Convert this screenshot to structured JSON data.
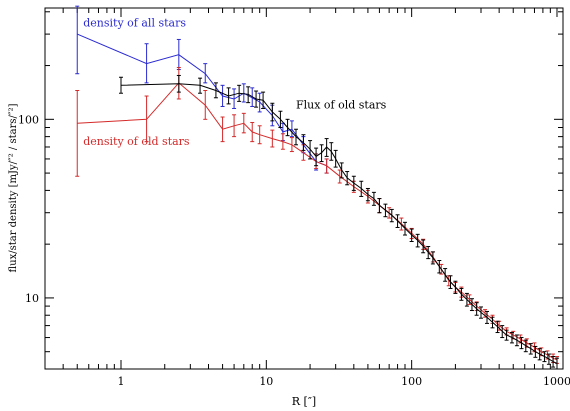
{
  "chart_data": {
    "type": "line",
    "title": "",
    "xlabel": "R [″]",
    "ylabel": "flux/star density [mJy/″² / stars/″²]",
    "xscale": "log",
    "yscale": "log",
    "xlim": [
      0.3,
      1100
    ],
    "ylim": [
      4,
      420
    ],
    "xticks": [
      {
        "v": 1,
        "label": "1"
      },
      {
        "v": 10,
        "label": "10"
      },
      {
        "v": 100,
        "label": "100"
      },
      {
        "v": 1000,
        "label": "1000"
      }
    ],
    "yticks": [
      {
        "v": 10,
        "label": "10"
      },
      {
        "v": 100,
        "label": "100"
      }
    ],
    "series": [
      {
        "name": "density of all stars",
        "color": "#2a2ad2",
        "label": {
          "text": "density of all stars",
          "x": 0.55,
          "y": 330
        },
        "points": [
          [
            0.5,
            300,
            180,
            430
          ],
          [
            1.5,
            205,
            160,
            265
          ],
          [
            2.5,
            230,
            190,
            280
          ],
          [
            3.8,
            180,
            160,
            205
          ],
          [
            5,
            135,
            118,
            155
          ],
          [
            6,
            130,
            115,
            148
          ],
          [
            7,
            140,
            125,
            158
          ],
          [
            8,
            132,
            118,
            150
          ],
          [
            9,
            125,
            110,
            140
          ],
          [
            11,
            105,
            92,
            120
          ],
          [
            13,
            85,
            76,
            95
          ],
          [
            15,
            88,
            80,
            98
          ],
          [
            18,
            72,
            65,
            80
          ],
          [
            22,
            58,
            52,
            64
          ],
          [
            26,
            55,
            50,
            60
          ]
        ]
      },
      {
        "name": "density of old stars",
        "color": "#d42a2a",
        "label": {
          "text": "density of old stars",
          "x": 0.55,
          "y": 72
        },
        "points": [
          [
            0.5,
            95,
            48,
            145
          ],
          [
            1.5,
            100,
            75,
            135
          ],
          [
            2.5,
            160,
            130,
            195
          ],
          [
            3.8,
            120,
            100,
            145
          ],
          [
            5,
            88,
            75,
            103
          ],
          [
            6,
            92,
            80,
            106
          ],
          [
            7,
            95,
            84,
            108
          ],
          [
            8,
            85,
            75,
            96
          ],
          [
            9,
            82,
            73,
            92
          ],
          [
            11,
            78,
            70,
            87
          ],
          [
            13,
            75,
            68,
            83
          ],
          [
            15,
            72,
            66,
            79
          ],
          [
            18,
            65,
            59,
            72
          ],
          [
            22,
            58,
            53,
            64
          ],
          [
            26,
            55,
            50,
            60
          ],
          [
            32,
            48,
            44,
            52
          ],
          [
            40,
            42,
            39,
            45
          ],
          [
            50,
            37,
            34,
            40
          ],
          [
            60,
            33,
            30,
            36
          ],
          [
            70,
            30,
            28,
            32
          ],
          [
            85,
            26,
            24,
            28
          ],
          [
            100,
            23,
            21.5,
            24.5
          ],
          [
            120,
            20,
            18.7,
            21.3
          ],
          [
            140,
            17,
            15.9,
            18.1
          ],
          [
            160,
            14.5,
            13.6,
            15.4
          ],
          [
            180,
            12.5,
            11.7,
            13.3
          ],
          [
            200,
            11.5,
            10.8,
            12.2
          ],
          [
            220,
            10.8,
            10.1,
            11.5
          ],
          [
            250,
            9.8,
            9.2,
            10.4
          ],
          [
            280,
            9.0,
            8.5,
            9.5
          ],
          [
            320,
            8.2,
            7.8,
            8.6
          ],
          [
            360,
            7.6,
            7.2,
            8.0
          ],
          [
            400,
            7.0,
            6.6,
            7.4
          ],
          [
            450,
            6.5,
            6.2,
            6.8
          ],
          [
            500,
            6.2,
            5.9,
            6.5
          ],
          [
            560,
            5.9,
            5.6,
            6.2
          ],
          [
            620,
            5.6,
            5.3,
            5.9
          ],
          [
            700,
            5.3,
            5.0,
            5.6
          ],
          [
            780,
            5.0,
            4.75,
            5.25
          ],
          [
            860,
            4.8,
            4.55,
            5.05
          ],
          [
            940,
            4.6,
            4.35,
            4.85
          ],
          [
            1000,
            4.5,
            4.3,
            4.7
          ]
        ]
      },
      {
        "name": "Flux of old stars",
        "color": "#000000",
        "label": {
          "text": "Flux of old stars",
          "x": 16,
          "y": 115
        },
        "points": [
          [
            1,
            155,
            140,
            172
          ],
          [
            2.5,
            158,
            142,
            176
          ],
          [
            3.5,
            155,
            140,
            170
          ],
          [
            4.5,
            145,
            132,
            160
          ],
          [
            5.5,
            135,
            122,
            150
          ],
          [
            6.5,
            140,
            126,
            155
          ],
          [
            7.5,
            138,
            124,
            152
          ],
          [
            8.5,
            130,
            117,
            144
          ],
          [
            9.5,
            128,
            115,
            142
          ],
          [
            11,
            110,
            98,
            123
          ],
          [
            12.5,
            100,
            90,
            111
          ],
          [
            14,
            90,
            81,
            100
          ],
          [
            16,
            80,
            72,
            88
          ],
          [
            18,
            74,
            67,
            82
          ],
          [
            20,
            68,
            60,
            76
          ],
          [
            22,
            62,
            55,
            69
          ],
          [
            24,
            65,
            58,
            72
          ],
          [
            26,
            70,
            62,
            78
          ],
          [
            28,
            66,
            59,
            74
          ],
          [
            30,
            60,
            54,
            67
          ],
          [
            33,
            52,
            47,
            57
          ],
          [
            36,
            47,
            43,
            51
          ],
          [
            40,
            44,
            40,
            48
          ],
          [
            45,
            41,
            37,
            45
          ],
          [
            50,
            38,
            35,
            41
          ],
          [
            55,
            36,
            33,
            39
          ],
          [
            60,
            33,
            30,
            36
          ],
          [
            66,
            31,
            28.5,
            33.5
          ],
          [
            73,
            29,
            26.7,
            31.3
          ],
          [
            80,
            27,
            24.8,
            29.2
          ],
          [
            90,
            24.5,
            22.5,
            26.5
          ],
          [
            100,
            22.5,
            20.7,
            24.3
          ],
          [
            110,
            21,
            19.3,
            22.7
          ],
          [
            120,
            19.5,
            17.9,
            21.1
          ],
          [
            130,
            18,
            16.6,
            19.4
          ],
          [
            140,
            16.8,
            15.5,
            18.1
          ],
          [
            155,
            15,
            13.8,
            16.2
          ],
          [
            170,
            13.5,
            12.4,
            14.6
          ],
          [
            185,
            12.3,
            11.3,
            13.3
          ],
          [
            200,
            11.5,
            10.6,
            12.4
          ],
          [
            220,
            10.5,
            9.7,
            11.3
          ],
          [
            240,
            9.8,
            9.0,
            10.6
          ],
          [
            260,
            9.2,
            8.5,
            9.9
          ],
          [
            280,
            8.7,
            8.0,
            9.4
          ],
          [
            300,
            8.3,
            7.7,
            8.9
          ],
          [
            330,
            7.8,
            7.2,
            8.4
          ],
          [
            360,
            7.3,
            6.8,
            7.8
          ],
          [
            390,
            6.9,
            6.4,
            7.4
          ],
          [
            420,
            6.5,
            6.0,
            7.0
          ],
          [
            450,
            6.2,
            5.8,
            6.6
          ],
          [
            490,
            6.0,
            5.6,
            6.4
          ],
          [
            530,
            5.8,
            5.4,
            6.2
          ],
          [
            570,
            5.6,
            5.2,
            6.0
          ],
          [
            610,
            5.4,
            5.0,
            5.8
          ],
          [
            660,
            5.2,
            4.85,
            5.55
          ],
          [
            710,
            5.0,
            4.65,
            5.35
          ],
          [
            760,
            4.85,
            4.5,
            5.2
          ],
          [
            820,
            4.7,
            4.4,
            5.0
          ],
          [
            880,
            4.55,
            4.25,
            4.85
          ],
          [
            940,
            4.4,
            4.1,
            4.7
          ],
          [
            1000,
            4.3,
            4.0,
            4.6
          ]
        ]
      }
    ]
  }
}
